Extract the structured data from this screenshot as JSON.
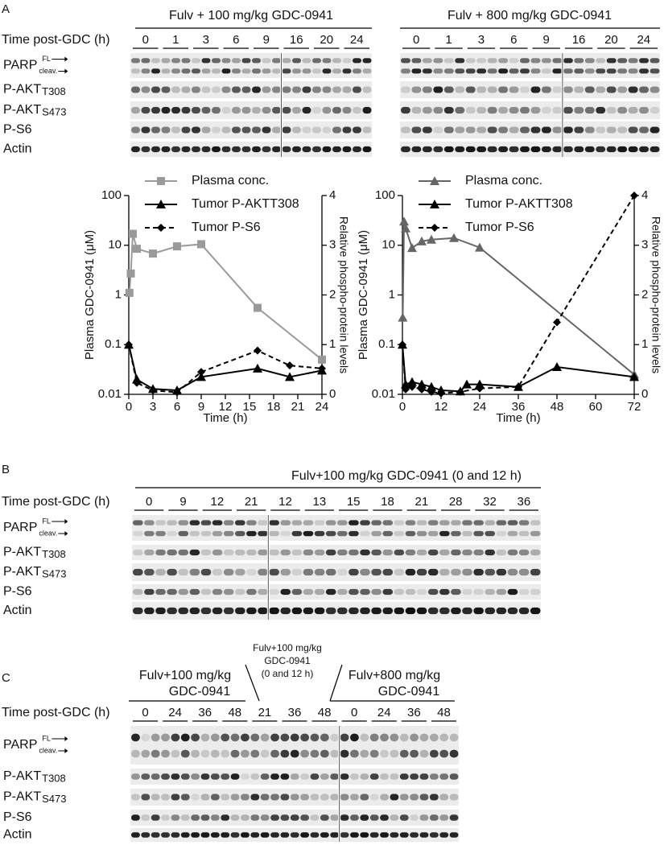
{
  "panel_a": {
    "label": "A",
    "left_blot": {
      "title": "Fulv + 100 mg/kg GDC-0941",
      "time_label": "Time post-GDC (h)",
      "times": [
        "0",
        "1",
        "3",
        "6",
        "9",
        "16",
        "20",
        "24"
      ]
    },
    "right_blot": {
      "title": "Fulv +  800 mg/kg GDC-0941",
      "times": [
        "0",
        "1",
        "3",
        "6",
        "9",
        "16",
        "20",
        "24"
      ]
    },
    "rows": [
      {
        "name": "PARP",
        "fl": "FL",
        "cleav": "cleav."
      },
      {
        "name": "P-AKT",
        "sub": "T308"
      },
      {
        "name": "P-AKT",
        "sub": "S473"
      },
      {
        "name": "P-S6"
      },
      {
        "name": "Actin"
      }
    ]
  },
  "chart_data": [
    {
      "type": "line",
      "x_label": "Time (h)",
      "y_label": "Plasma GDC-0941 (μM)",
      "y2_label": "Relative phospho-protein levels",
      "xlim": [
        0,
        24
      ],
      "xticks": [
        0,
        3,
        6,
        9,
        12,
        15,
        18,
        21,
        24
      ],
      "ylim": [
        0.01,
        100
      ],
      "yticks": [
        0.01,
        0.1,
        1,
        10,
        100
      ],
      "log_y": true,
      "y2lim": [
        0,
        4
      ],
      "y2ticks": [
        0,
        1,
        2,
        3,
        4
      ],
      "series": [
        {
          "name": "Plasma conc.",
          "color": "#9a9a9a",
          "marker": "square",
          "dash": "solid",
          "axis": "y",
          "x": [
            0.08,
            0.25,
            0.5,
            1,
            3,
            6,
            9,
            16,
            24
          ],
          "values": [
            1.1,
            2.7,
            17,
            8.5,
            6.8,
            9.5,
            10.5,
            0.55,
            0.05
          ]
        },
        {
          "name": "Tumor P-AKTT308",
          "color": "#000000",
          "marker": "triangle",
          "dash": "solid",
          "axis": "y2",
          "x": [
            0,
            1,
            3,
            6,
            9,
            16,
            20,
            24
          ],
          "values": [
            1,
            0.3,
            0.11,
            0.08,
            0.35,
            0.52,
            0.35,
            0.48
          ]
        },
        {
          "name": "Tumor P-S6",
          "color": "#000000",
          "marker": "diamond",
          "dash": "dashed",
          "axis": "y2",
          "x": [
            0,
            1,
            3,
            6,
            9,
            16,
            20,
            24
          ],
          "values": [
            1,
            0.23,
            0.08,
            0.04,
            0.45,
            0.88,
            0.58,
            0.52
          ]
        }
      ]
    },
    {
      "type": "line",
      "x_label": "Time (h)",
      "y_label": "Plasma GDC-0941 (μM)",
      "y2_label": "Relative phospho-protein levels",
      "xlim": [
        0,
        72
      ],
      "xticks": [
        0,
        12,
        24,
        36,
        48,
        60,
        72
      ],
      "ylim": [
        0.01,
        100
      ],
      "yticks": [
        0.01,
        0.1,
        1,
        10,
        100
      ],
      "log_y": true,
      "y2lim": [
        0,
        4
      ],
      "y2ticks": [
        0,
        1,
        2,
        3,
        4
      ],
      "series": [
        {
          "name": "Plasma conc.",
          "color": "#666666",
          "marker": "triangle",
          "dash": "solid",
          "axis": "y",
          "x": [
            0.1,
            0.5,
            1,
            3,
            6,
            9,
            16,
            24,
            72
          ],
          "values": [
            0.35,
            30,
            22,
            8.8,
            12,
            13,
            14,
            9,
            0.025
          ]
        },
        {
          "name": "Tumor P-AKTT308",
          "color": "#000000",
          "marker": "triangle",
          "dash": "solid",
          "axis": "y2",
          "x": [
            0,
            1,
            3,
            6,
            9,
            12,
            18,
            20,
            24,
            36,
            48,
            72
          ],
          "values": [
            1,
            0.2,
            0.25,
            0.2,
            0.15,
            0.08,
            0.06,
            0.2,
            0.2,
            0.15,
            0.55,
            0.35
          ]
        },
        {
          "name": "Tumor P-S6",
          "color": "#000000",
          "marker": "diamond",
          "dash": "dashed",
          "axis": "y2",
          "x": [
            0,
            1,
            3,
            6,
            9,
            12,
            18,
            24,
            36,
            48,
            72
          ],
          "values": [
            1,
            0.1,
            0.15,
            0.1,
            0.05,
            0.02,
            0.05,
            0.12,
            0.15,
            1.45,
            4
          ]
        }
      ]
    }
  ],
  "panel_b": {
    "label": "B",
    "title": "Fulv+100 mg/kg GDC-0941 (0 and 12 h)",
    "time_label": "Time post-GDC (h)",
    "times": [
      "0",
      "9",
      "12",
      "21",
      "12",
      "13",
      "15",
      "18",
      "21",
      "28",
      "32",
      "36"
    ],
    "rows": [
      {
        "name": "PARP",
        "fl": "FL",
        "cleav": "cleav."
      },
      {
        "name": "P-AKT",
        "sub": "T308"
      },
      {
        "name": "P-AKT",
        "sub": "S473"
      },
      {
        "name": "P-S6"
      },
      {
        "name": "Actin"
      }
    ]
  },
  "panel_c": {
    "label": "C",
    "groups": [
      {
        "lines": [
          "Fulv+100 mg/kg",
          "GDC-0941"
        ]
      },
      {
        "lines": [
          "Fulv+100 mg/kg",
          "GDC-0941",
          "(0 and 12 h)"
        ]
      },
      {
        "lines": [
          "Fulv+800 mg/kg",
          "GDC-0941"
        ]
      }
    ],
    "time_label": "Time post-GDC (h)",
    "times": [
      "0",
      "24",
      "36",
      "48",
      "21",
      "36",
      "48",
      "0",
      "24",
      "36",
      "48"
    ],
    "rows": [
      {
        "name": "PARP",
        "fl": "FL",
        "cleav": "cleav."
      },
      {
        "name": "P-AKT",
        "sub": "T308"
      },
      {
        "name": "P-AKT",
        "sub": "S473"
      },
      {
        "name": "P-S6"
      },
      {
        "name": "Actin"
      }
    ]
  }
}
